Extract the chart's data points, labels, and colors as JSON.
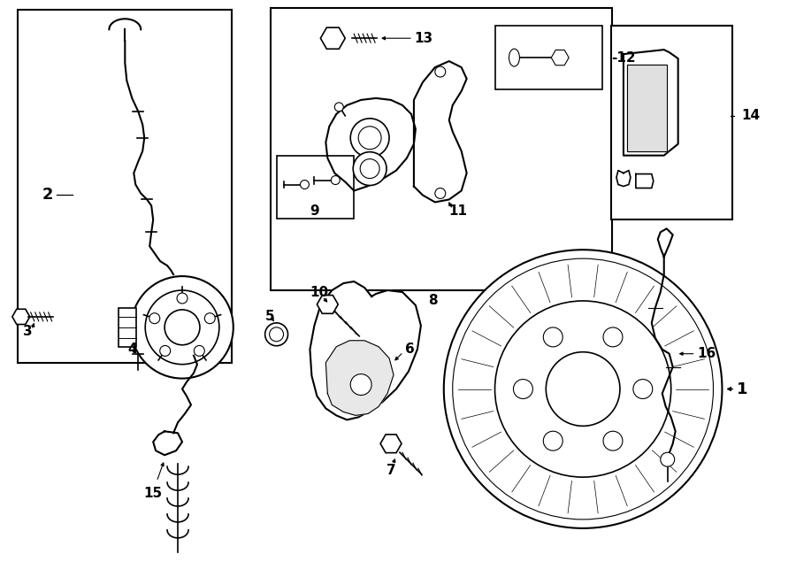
{
  "background_color": "#ffffff",
  "line_color": "#000000",
  "fig_width": 9.0,
  "fig_height": 6.61,
  "dpi": 100
}
